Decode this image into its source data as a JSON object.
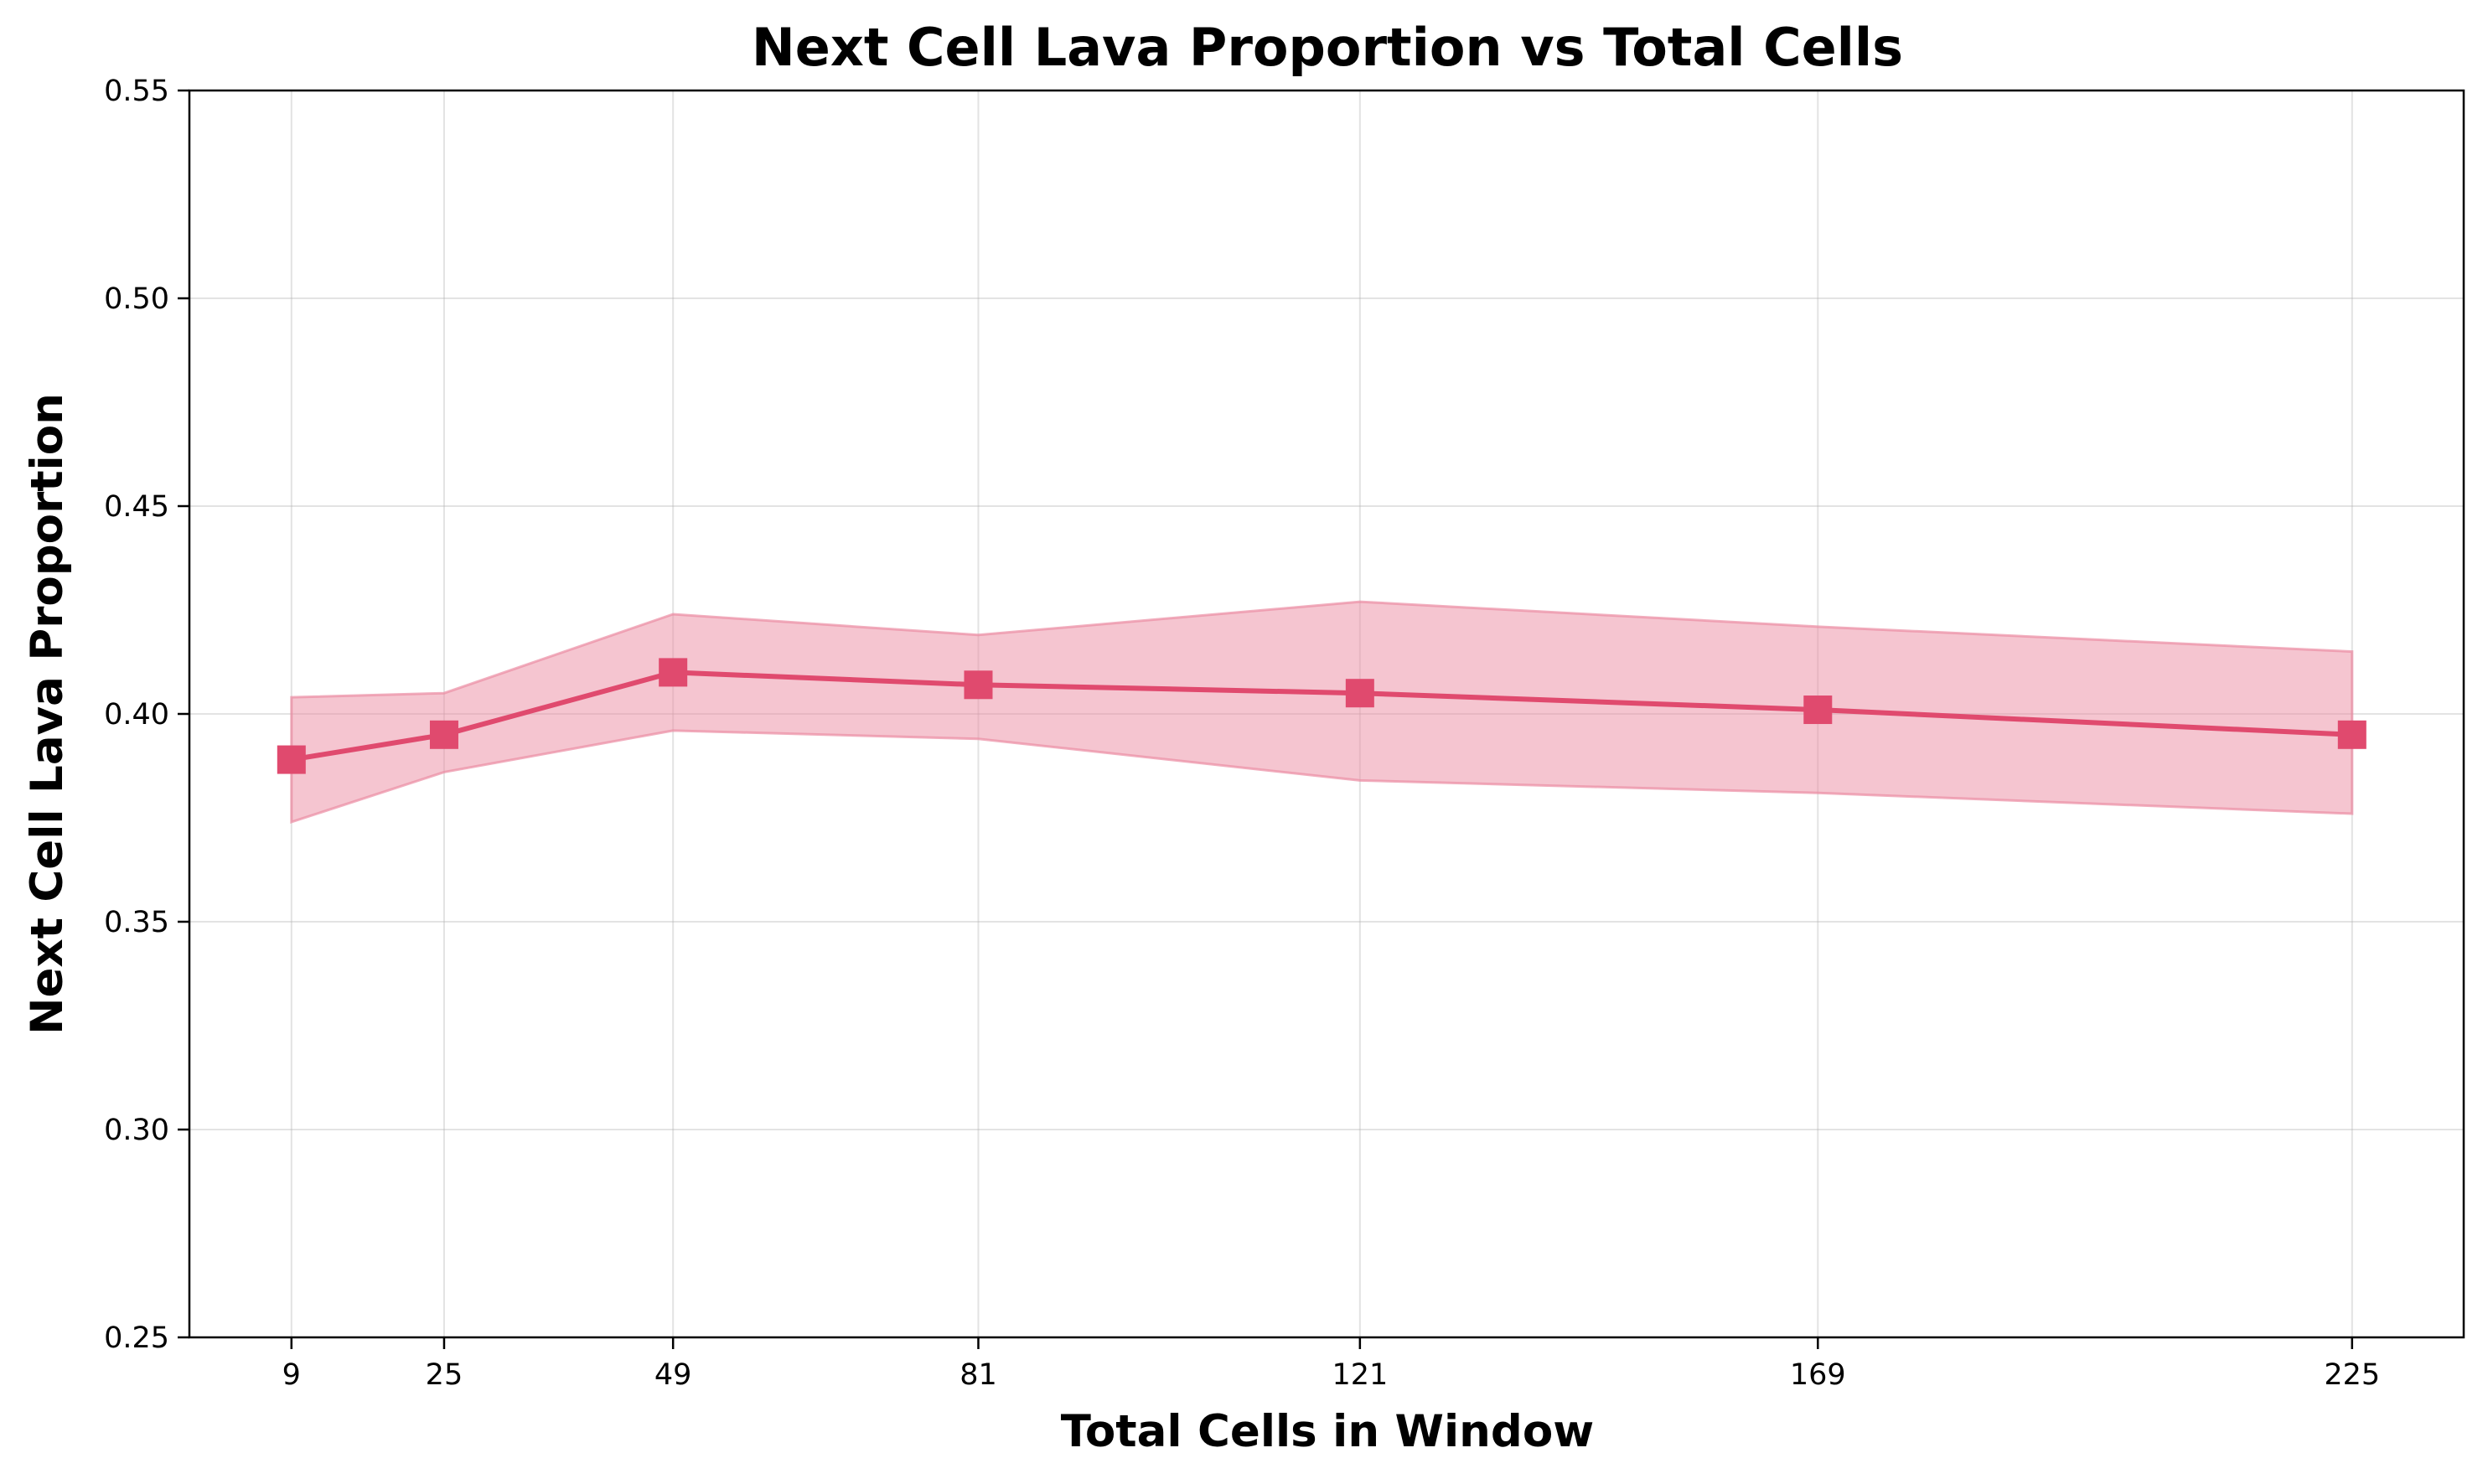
{
  "chart_data": {
    "type": "line",
    "title": "Next Cell Lava Proportion vs Total Cells",
    "xlabel": "Total Cells in Window",
    "ylabel": "Next Cell Lava Proportion",
    "x": [
      9,
      25,
      49,
      81,
      121,
      169,
      225
    ],
    "x_tick_labels": [
      "9",
      "25",
      "49",
      "81",
      "121",
      "169",
      "225"
    ],
    "y_ticks": [
      0.25,
      0.3,
      0.35,
      0.4,
      0.45,
      0.5,
      0.55
    ],
    "y_tick_labels": [
      "0.25",
      "0.30",
      "0.35",
      "0.40",
      "0.45",
      "0.50",
      "0.55"
    ],
    "xlim": [
      -1.7,
      236.7
    ],
    "ylim": [
      0.25,
      0.55
    ],
    "grid": true,
    "series": [
      {
        "values": [
          0.389,
          0.395,
          0.41,
          0.407,
          0.405,
          0.401,
          0.395
        ],
        "band_upper": [
          0.404,
          0.405,
          0.424,
          0.419,
          0.427,
          0.421,
          0.415
        ],
        "band_lower": [
          0.374,
          0.386,
          0.396,
          0.394,
          0.384,
          0.381,
          0.376
        ],
        "color": "#e04a6e",
        "band_color": "#eb8ca2",
        "marker": "square"
      }
    ]
  }
}
